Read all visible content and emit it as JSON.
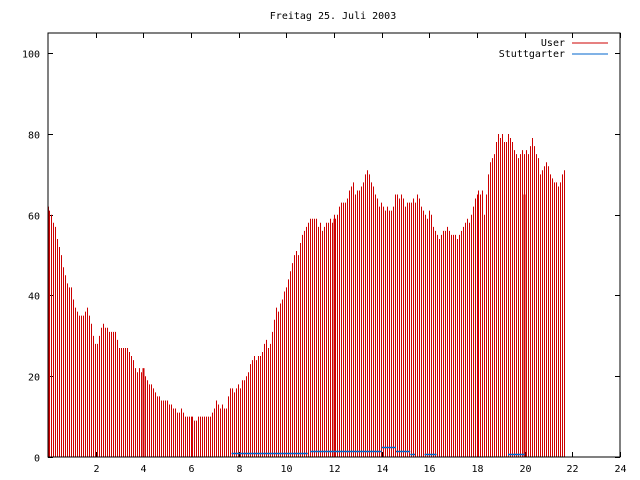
{
  "chart_data": {
    "type": "bar",
    "title": "Freitag 25. Juli 2003",
    "xlabel": "",
    "ylabel": "",
    "xlim": [
      0,
      24
    ],
    "ylim": [
      0,
      105
    ],
    "xticks": [
      "2",
      "4",
      "6",
      "8",
      "10",
      "12",
      "14",
      "16",
      "18",
      "20",
      "22",
      "24"
    ],
    "yticks": [
      "0",
      "20",
      "40",
      "60",
      "80",
      "100"
    ],
    "grid": false,
    "legend_position": "top-right",
    "sample_minutes": 5,
    "series": [
      {
        "name": "User",
        "color": "#cc0000",
        "values": [
          62,
          61,
          60,
          58,
          57,
          54,
          52,
          50,
          47,
          45,
          43,
          42,
          42,
          39,
          37,
          36,
          35,
          35,
          35,
          36,
          37,
          35,
          33,
          30,
          28,
          28,
          30,
          32,
          33,
          32,
          32,
          31,
          31,
          31,
          31,
          29,
          27,
          27,
          27,
          27,
          27,
          26,
          25,
          24,
          22,
          21,
          22,
          21,
          21,
          20,
          19,
          18,
          18,
          17,
          16,
          15,
          15,
          14,
          14,
          14,
          14,
          13,
          13,
          12,
          12,
          11,
          11,
          12,
          11,
          10,
          10,
          10,
          10,
          10,
          9,
          9,
          10,
          10,
          10,
          10,
          10,
          10,
          10,
          11,
          12,
          14,
          13,
          12,
          13,
          12,
          12,
          15,
          17,
          17,
          16,
          17,
          18,
          17,
          19,
          19,
          20,
          21,
          23,
          24,
          25,
          24,
          25,
          25,
          26,
          28,
          29,
          27,
          28,
          31,
          34,
          37,
          36,
          38,
          39,
          41,
          42,
          44,
          46,
          48,
          50,
          51,
          50,
          53,
          55,
          56,
          57,
          58,
          59,
          59,
          59,
          59,
          57,
          58,
          56,
          57,
          58,
          58,
          59,
          58,
          60,
          59,
          60,
          62,
          63,
          63,
          63,
          64,
          66,
          67,
          68,
          65,
          66,
          66,
          67,
          68,
          70,
          71,
          70,
          68,
          67,
          65,
          64,
          62,
          63,
          62,
          61,
          62,
          61,
          61,
          62,
          65,
          65,
          64,
          65,
          64,
          62,
          63,
          63,
          63,
          64,
          63,
          65,
          64,
          62,
          61,
          60,
          59,
          61,
          60,
          57,
          56,
          55,
          54,
          55,
          56,
          56,
          57,
          56,
          55,
          55,
          55,
          54,
          55,
          56,
          57,
          58,
          59,
          58,
          60,
          62,
          64,
          65,
          66,
          65,
          66,
          60,
          65,
          70,
          73,
          74,
          75,
          78,
          80,
          79,
          80,
          78,
          78,
          80,
          79,
          78,
          76,
          75,
          74,
          75,
          76,
          75,
          76,
          75,
          77,
          79,
          77,
          75,
          74,
          70,
          71,
          72,
          73,
          72,
          70,
          69,
          68,
          68,
          67,
          68,
          70,
          71
        ],
        "spikes": [
          {
            "time": 4.0,
            "value": 22
          },
          {
            "time": 12.0,
            "value": 59
          },
          {
            "time": 20.0,
            "value": 65
          }
        ]
      },
      {
        "name": "Stuttgarter",
        "color": "#0066cc",
        "segments": [
          {
            "from": 7.7,
            "to": 10.9,
            "value": 1.1
          },
          {
            "from": 11.0,
            "to": 14.0,
            "value": 1.6
          },
          {
            "from": 14.0,
            "to": 14.6,
            "value": 2.6
          },
          {
            "from": 14.6,
            "to": 15.2,
            "value": 1.6
          },
          {
            "from": 15.2,
            "to": 15.4,
            "value": 0.8
          },
          {
            "from": 15.8,
            "to": 16.3,
            "value": 0.7
          },
          {
            "from": 19.3,
            "to": 20.0,
            "value": 0.7
          }
        ]
      }
    ]
  }
}
